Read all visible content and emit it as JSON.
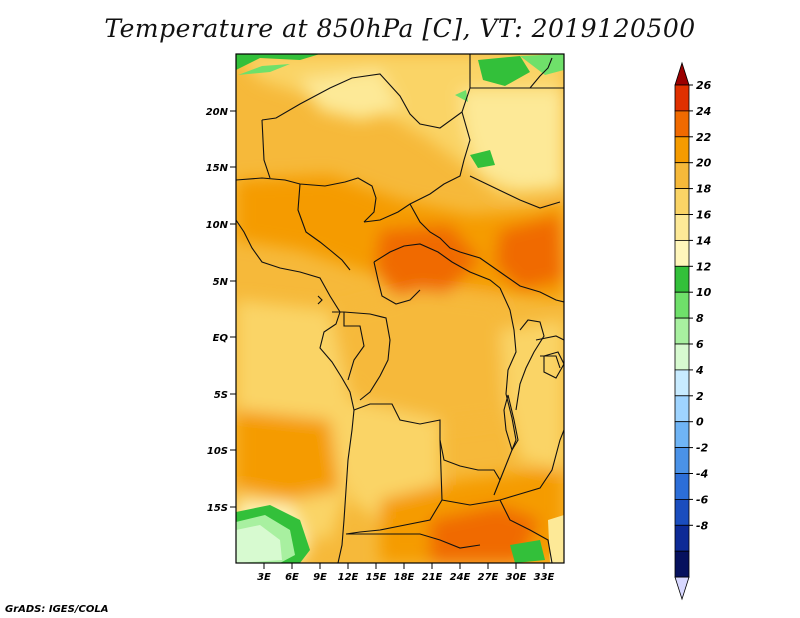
{
  "title": "Temperature at 850hPa [C], VT: 2019120500",
  "credit": "GrADS: IGES/COLA",
  "map": {
    "lat_ticks": [
      "20N",
      "15N",
      "10N",
      "5N",
      "EQ",
      "5S",
      "10S",
      "15S"
    ],
    "lon_ticks": [
      "3E",
      "6E",
      "9E",
      "12E",
      "15E",
      "18E",
      "21E",
      "24E",
      "27E",
      "30E",
      "33E"
    ]
  },
  "colorbar": {
    "labels": [
      "26",
      "24",
      "22",
      "20",
      "18",
      "16",
      "14",
      "12",
      "10",
      "8",
      "6",
      "4",
      "2",
      "0",
      "-2",
      "-4",
      "-6",
      "-8"
    ],
    "colors": [
      "#9b0000",
      "#e03000",
      "#f06a00",
      "#f59b00",
      "#f6b93a",
      "#fad466",
      "#fde997",
      "#fff6bb",
      "#33c03a",
      "#6fe06a",
      "#a8f0a0",
      "#d7fad0",
      "#c8ebff",
      "#9fd4ff",
      "#6fb4f5",
      "#4a92e8",
      "#2c6ed8",
      "#1a4dbe",
      "#0d2a96",
      "#06115e",
      "#d8d8ff"
    ]
  }
}
